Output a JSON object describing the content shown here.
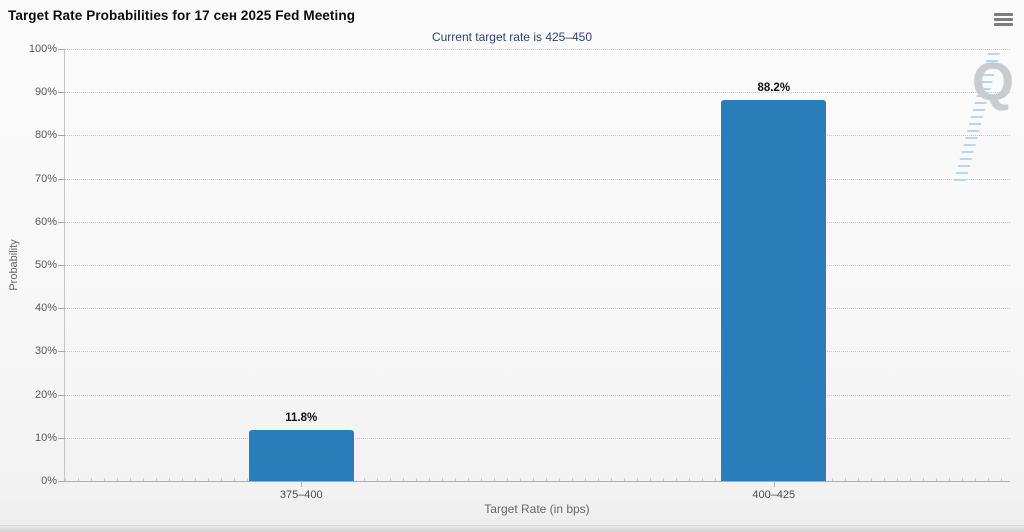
{
  "header": {
    "menu_tooltip": "Chart context menu"
  },
  "chart_data": {
    "type": "bar",
    "title": "Target Rate Probabilities for 17 сен 2025 Fed Meeting",
    "subtitle": "Current target rate is 425–450",
    "categories": [
      "375–400",
      "400–425"
    ],
    "values": [
      11.8,
      88.2
    ],
    "value_labels": [
      "11.8%",
      "88.2%"
    ],
    "xlabel": "Target Rate (in bps)",
    "ylabel": "Probability",
    "ylim": [
      0,
      100
    ],
    "ytick_step": 10,
    "ytick_labels": [
      "0%",
      "10%",
      "20%",
      "30%",
      "40%",
      "50%",
      "60%",
      "70%",
      "80%",
      "90%",
      "100%"
    ],
    "grid": true,
    "legend": "none",
    "colors": {
      "bar": "#2a7db8",
      "subtitle_text": "#2e4373",
      "watermark_hatch_blue": "#7db6e8",
      "watermark_gray": "#c9cccf"
    },
    "watermark_letter": "Q"
  }
}
